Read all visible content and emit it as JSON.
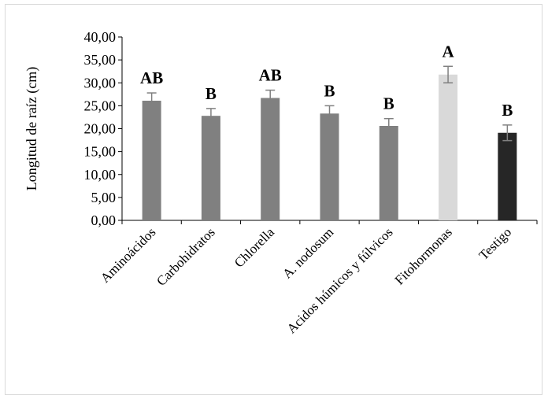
{
  "chart_data": {
    "type": "bar",
    "title": "",
    "xlabel": "",
    "ylabel": "Longitud de raíz (cm)",
    "ylim": [
      0,
      40
    ],
    "y_ticks": [
      "0,00",
      "5,00",
      "10,00",
      "15,00",
      "20,00",
      "25,00",
      "30,00",
      "35,00",
      "40,00"
    ],
    "y_tick_values": [
      0,
      5,
      10,
      15,
      20,
      25,
      30,
      35,
      40
    ],
    "grid": false,
    "legend": "none",
    "categories": [
      "Aminoácidos",
      "Carbohidratos",
      "Chlorella",
      "A. nodosum",
      "Acidos húmicos y fúlvicos",
      "Fitohormonas",
      "Testigo"
    ],
    "values": [
      26.1,
      22.8,
      26.7,
      23.3,
      20.6,
      31.8,
      19.1
    ],
    "errors": [
      1.7,
      1.6,
      1.7,
      1.7,
      1.6,
      1.8,
      1.7
    ],
    "significance_letters": [
      "AB",
      "B",
      "AB",
      "B",
      "B",
      "A",
      "B"
    ],
    "bar_colors": [
      "#808080",
      "#808080",
      "#808080",
      "#808080",
      "#808080",
      "#d9d9d9",
      "#262626"
    ],
    "error_bar_color": "#808080"
  }
}
